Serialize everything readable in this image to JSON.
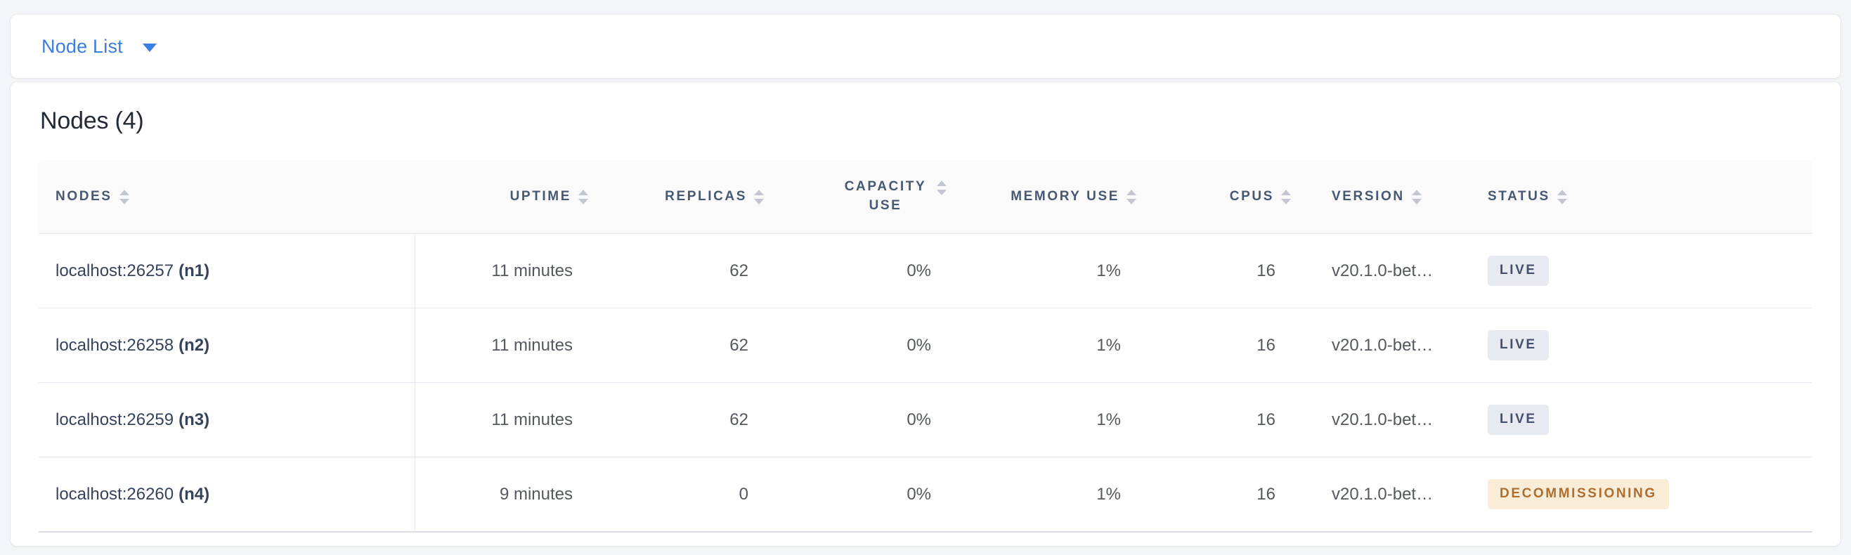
{
  "nav": {
    "dropdown_label": "Node List"
  },
  "page": {
    "heading": "Nodes (4)"
  },
  "colors": {
    "accent_blue": "#3b7de1",
    "live_badge_bg": "#e7eaf1",
    "live_badge_text": "#44506a",
    "decommissioning_badge_bg": "#f9edd8",
    "decommissioning_badge_text": "#ad6e32"
  },
  "table": {
    "columns": [
      {
        "key": "nodes",
        "label": "NODES"
      },
      {
        "key": "uptime",
        "label": "UPTIME"
      },
      {
        "key": "replicas",
        "label": "REPLICAS"
      },
      {
        "key": "capacity",
        "label": "CAPACITY USE",
        "wrap": true
      },
      {
        "key": "memory",
        "label": "MEMORY USE"
      },
      {
        "key": "cpus",
        "label": "CPUS"
      },
      {
        "key": "version",
        "label": "VERSION"
      },
      {
        "key": "status",
        "label": "STATUS"
      }
    ],
    "rows": [
      {
        "address": "localhost:26257",
        "node_id": "(n1)",
        "uptime": "11 minutes",
        "replicas": "62",
        "capacity": "0%",
        "memory": "1%",
        "cpus": "16",
        "version": "v20.1.0-bet…",
        "status": "LIVE",
        "status_kind": "live"
      },
      {
        "address": "localhost:26258",
        "node_id": "(n2)",
        "uptime": "11 minutes",
        "replicas": "62",
        "capacity": "0%",
        "memory": "1%",
        "cpus": "16",
        "version": "v20.1.0-bet…",
        "status": "LIVE",
        "status_kind": "live"
      },
      {
        "address": "localhost:26259",
        "node_id": "(n3)",
        "uptime": "11 minutes",
        "replicas": "62",
        "capacity": "0%",
        "memory": "1%",
        "cpus": "16",
        "version": "v20.1.0-bet…",
        "status": "LIVE",
        "status_kind": "live"
      },
      {
        "address": "localhost:26260",
        "node_id": "(n4)",
        "uptime": "9 minutes",
        "replicas": "0",
        "capacity": "0%",
        "memory": "1%",
        "cpus": "16",
        "version": "v20.1.0-bet…",
        "status": "DECOMMISSIONING",
        "status_kind": "decommissioning"
      }
    ]
  }
}
